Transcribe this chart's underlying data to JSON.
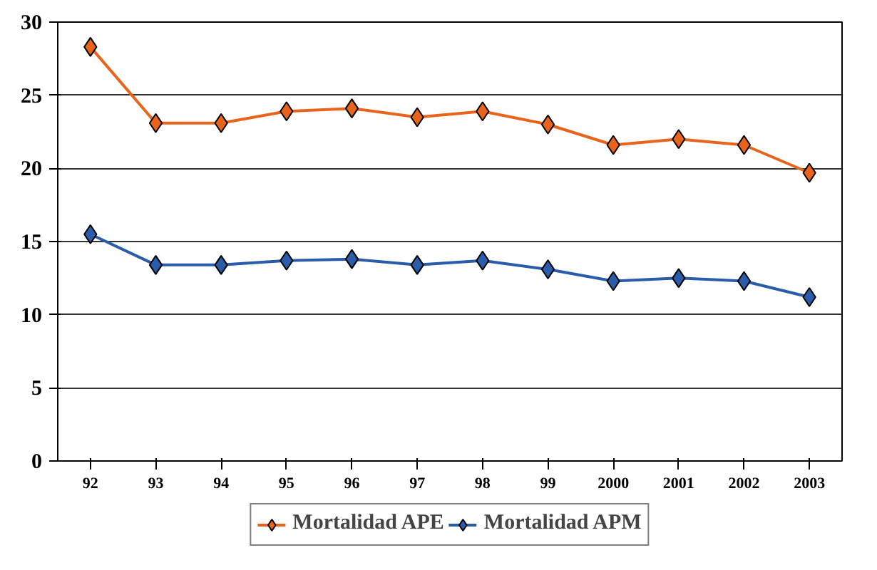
{
  "chart_data": {
    "type": "line",
    "categories": [
      "92",
      "93",
      "94",
      "95",
      "96",
      "97",
      "98",
      "99",
      "2000",
      "2001",
      "2002",
      "2003"
    ],
    "series": [
      {
        "name": "Mortalidad APE",
        "color": "#e8641c",
        "values": [
          28.3,
          23.1,
          23.1,
          23.9,
          24.1,
          23.5,
          23.9,
          23.0,
          21.6,
          22.0,
          21.6,
          19.7
        ]
      },
      {
        "name": "Mortalidad APM",
        "color": "#2a5caa",
        "values": [
          15.5,
          13.4,
          13.4,
          13.7,
          13.8,
          13.4,
          13.7,
          13.1,
          12.3,
          12.5,
          12.3,
          11.2
        ]
      }
    ],
    "ylim": [
      0,
      30
    ],
    "yticks": [
      0,
      5,
      10,
      15,
      20,
      25,
      30
    ],
    "grid": "y",
    "legend": "bottom",
    "marker": "diamond",
    "line_style": "solid"
  }
}
